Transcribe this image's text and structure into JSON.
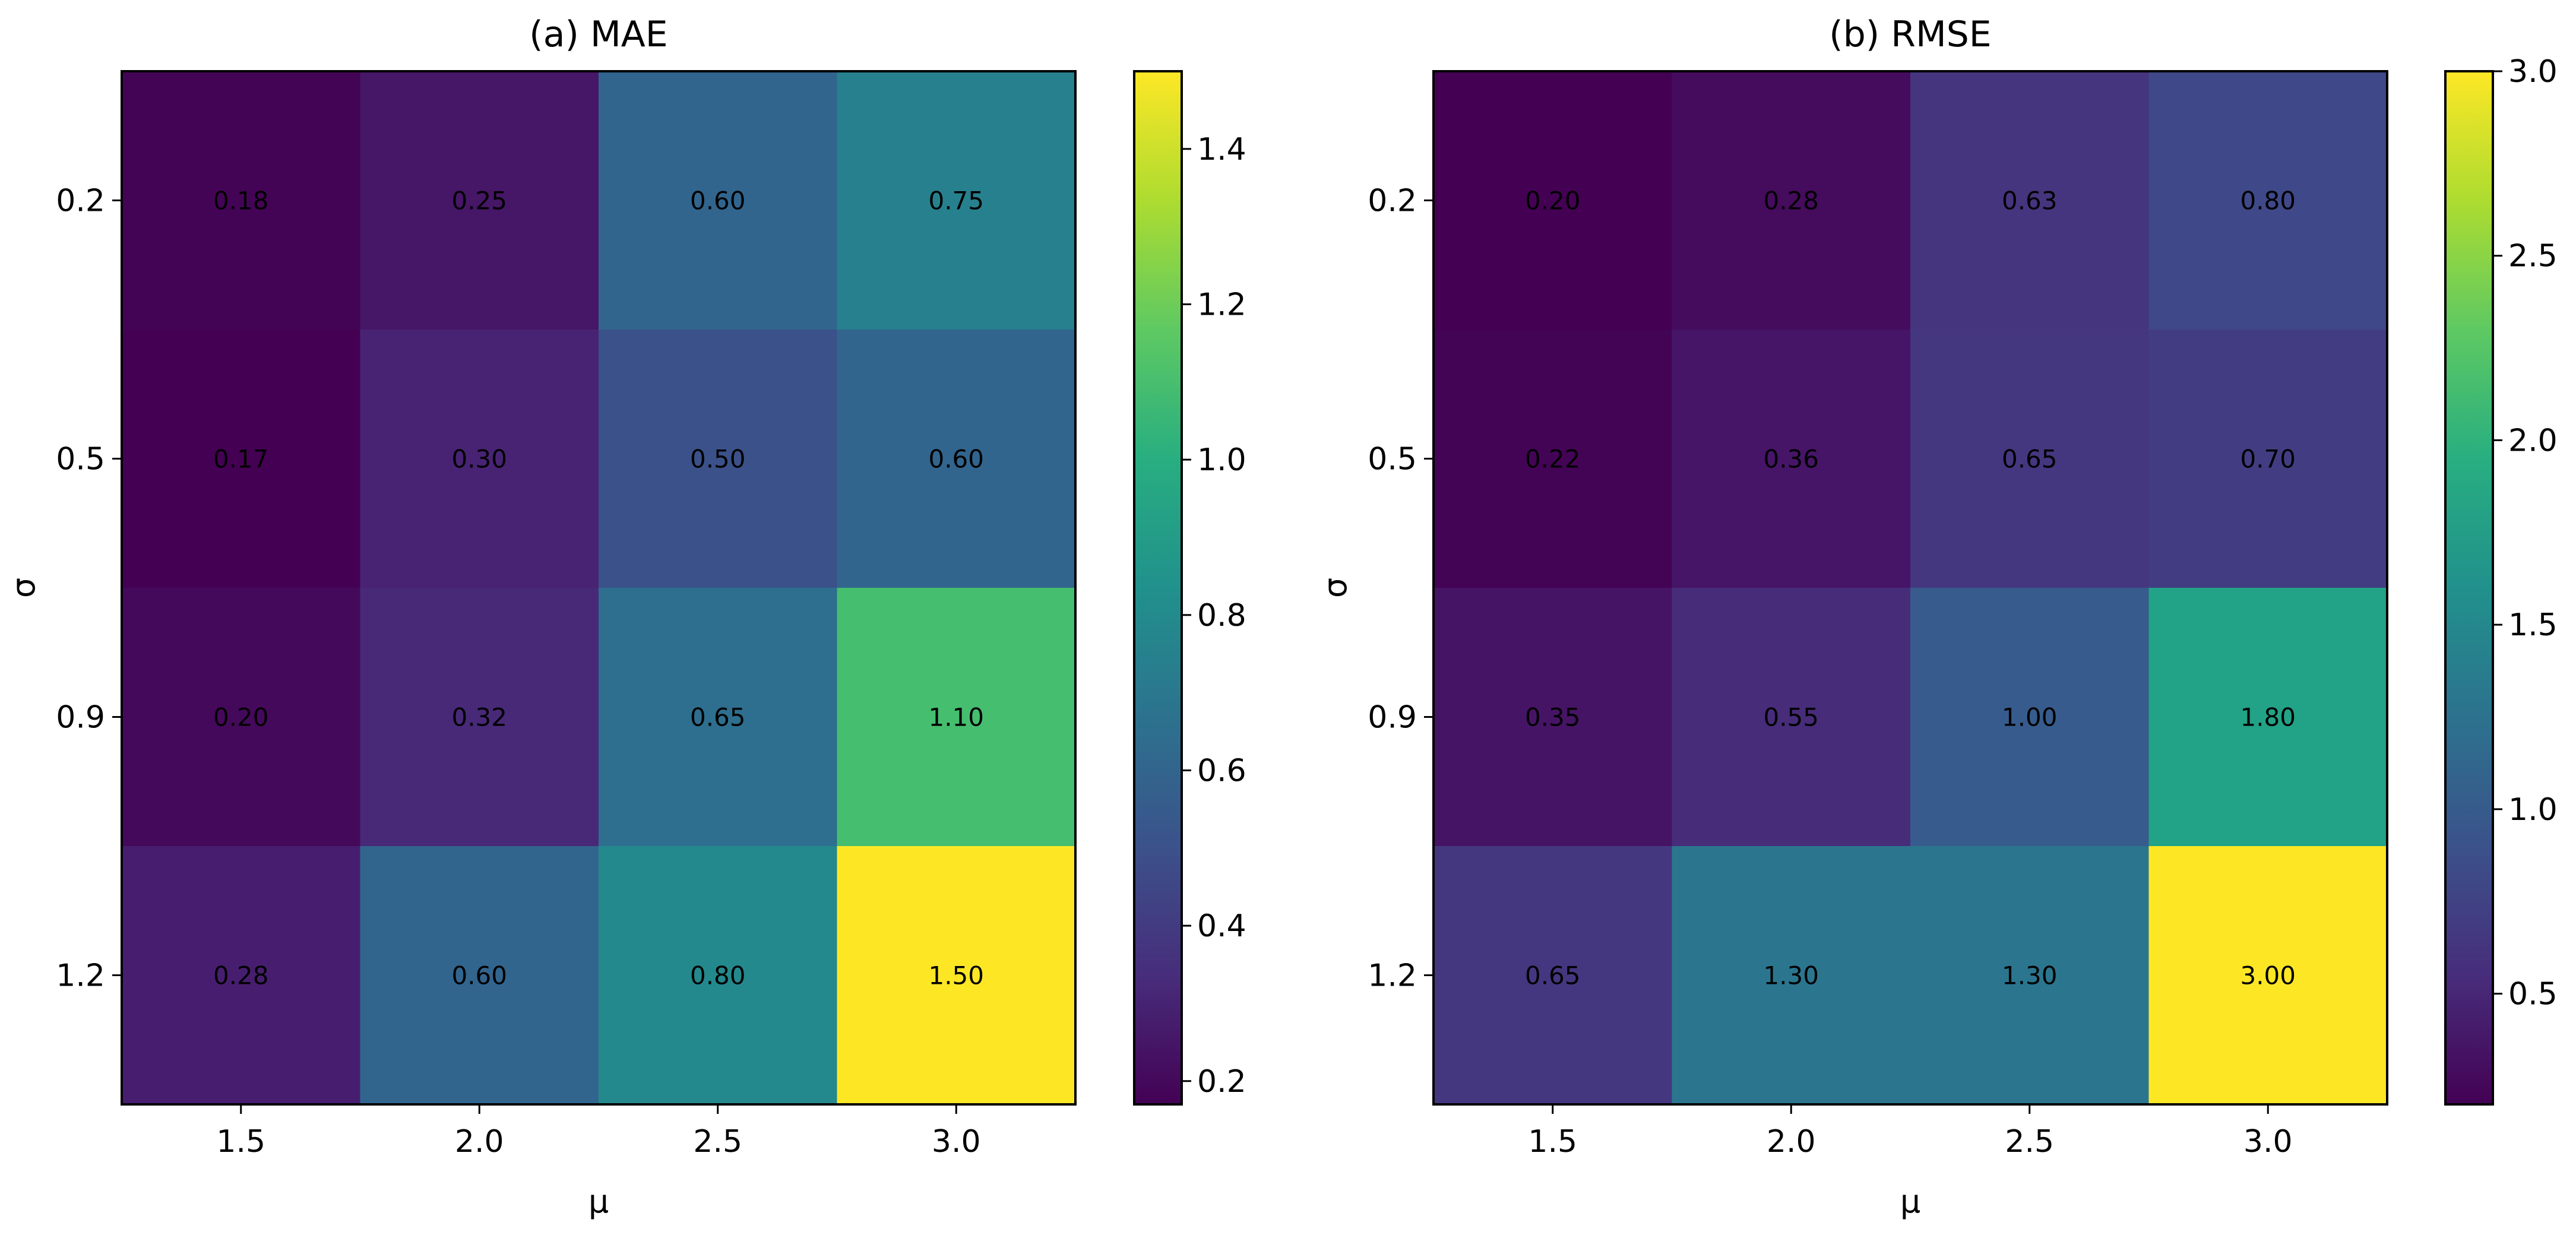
{
  "chart_data": [
    {
      "type": "heatmap",
      "title": "(a) MAE",
      "xlabel": "μ",
      "ylabel": "σ",
      "x": [
        "1.5",
        "2.0",
        "2.5",
        "3.0"
      ],
      "y": [
        "0.2",
        "0.5",
        "0.9",
        "1.2"
      ],
      "values": [
        [
          0.18,
          0.25,
          0.6,
          0.75
        ],
        [
          0.17,
          0.3,
          0.5,
          0.6
        ],
        [
          0.2,
          0.32,
          0.65,
          1.1
        ],
        [
          0.28,
          0.6,
          0.8,
          1.5
        ]
      ],
      "value_labels": [
        [
          "0.18",
          "0.25",
          "0.60",
          "0.75"
        ],
        [
          "0.17",
          "0.30",
          "0.50",
          "0.60"
        ],
        [
          "0.20",
          "0.32",
          "0.65",
          "1.10"
        ],
        [
          "0.28",
          "0.60",
          "0.80",
          "1.50"
        ]
      ],
      "colormap": "viridis",
      "colorbar": {
        "range": [
          0.17,
          1.5
        ],
        "ticks": [
          0.2,
          0.4,
          0.6,
          0.8,
          1.0,
          1.2,
          1.4
        ],
        "tick_labels": [
          "0.2",
          "0.4",
          "0.6",
          "0.8",
          "1.0",
          "1.2",
          "1.4"
        ]
      }
    },
    {
      "type": "heatmap",
      "title": "(b) RMSE",
      "xlabel": "μ",
      "ylabel": "σ",
      "x": [
        "1.5",
        "2.0",
        "2.5",
        "3.0"
      ],
      "y": [
        "0.2",
        "0.5",
        "0.9",
        "1.2"
      ],
      "values": [
        [
          0.2,
          0.28,
          0.63,
          0.8
        ],
        [
          0.22,
          0.36,
          0.65,
          0.7
        ],
        [
          0.35,
          0.55,
          1.0,
          1.8
        ],
        [
          0.65,
          1.3,
          1.3,
          3.0
        ]
      ],
      "value_labels": [
        [
          "0.20",
          "0.28",
          "0.63",
          "0.80"
        ],
        [
          "0.22",
          "0.36",
          "0.65",
          "0.70"
        ],
        [
          "0.35",
          "0.55",
          "1.00",
          "1.80"
        ],
        [
          "0.65",
          "1.30",
          "1.30",
          "3.00"
        ]
      ],
      "colormap": "viridis",
      "colorbar": {
        "range": [
          0.2,
          3.0
        ],
        "ticks": [
          0.5,
          1.0,
          1.5,
          2.0,
          2.5,
          3.0
        ],
        "tick_labels": [
          "0.5",
          "1.0",
          "1.5",
          "2.0",
          "2.5",
          "3.0"
        ]
      }
    }
  ]
}
